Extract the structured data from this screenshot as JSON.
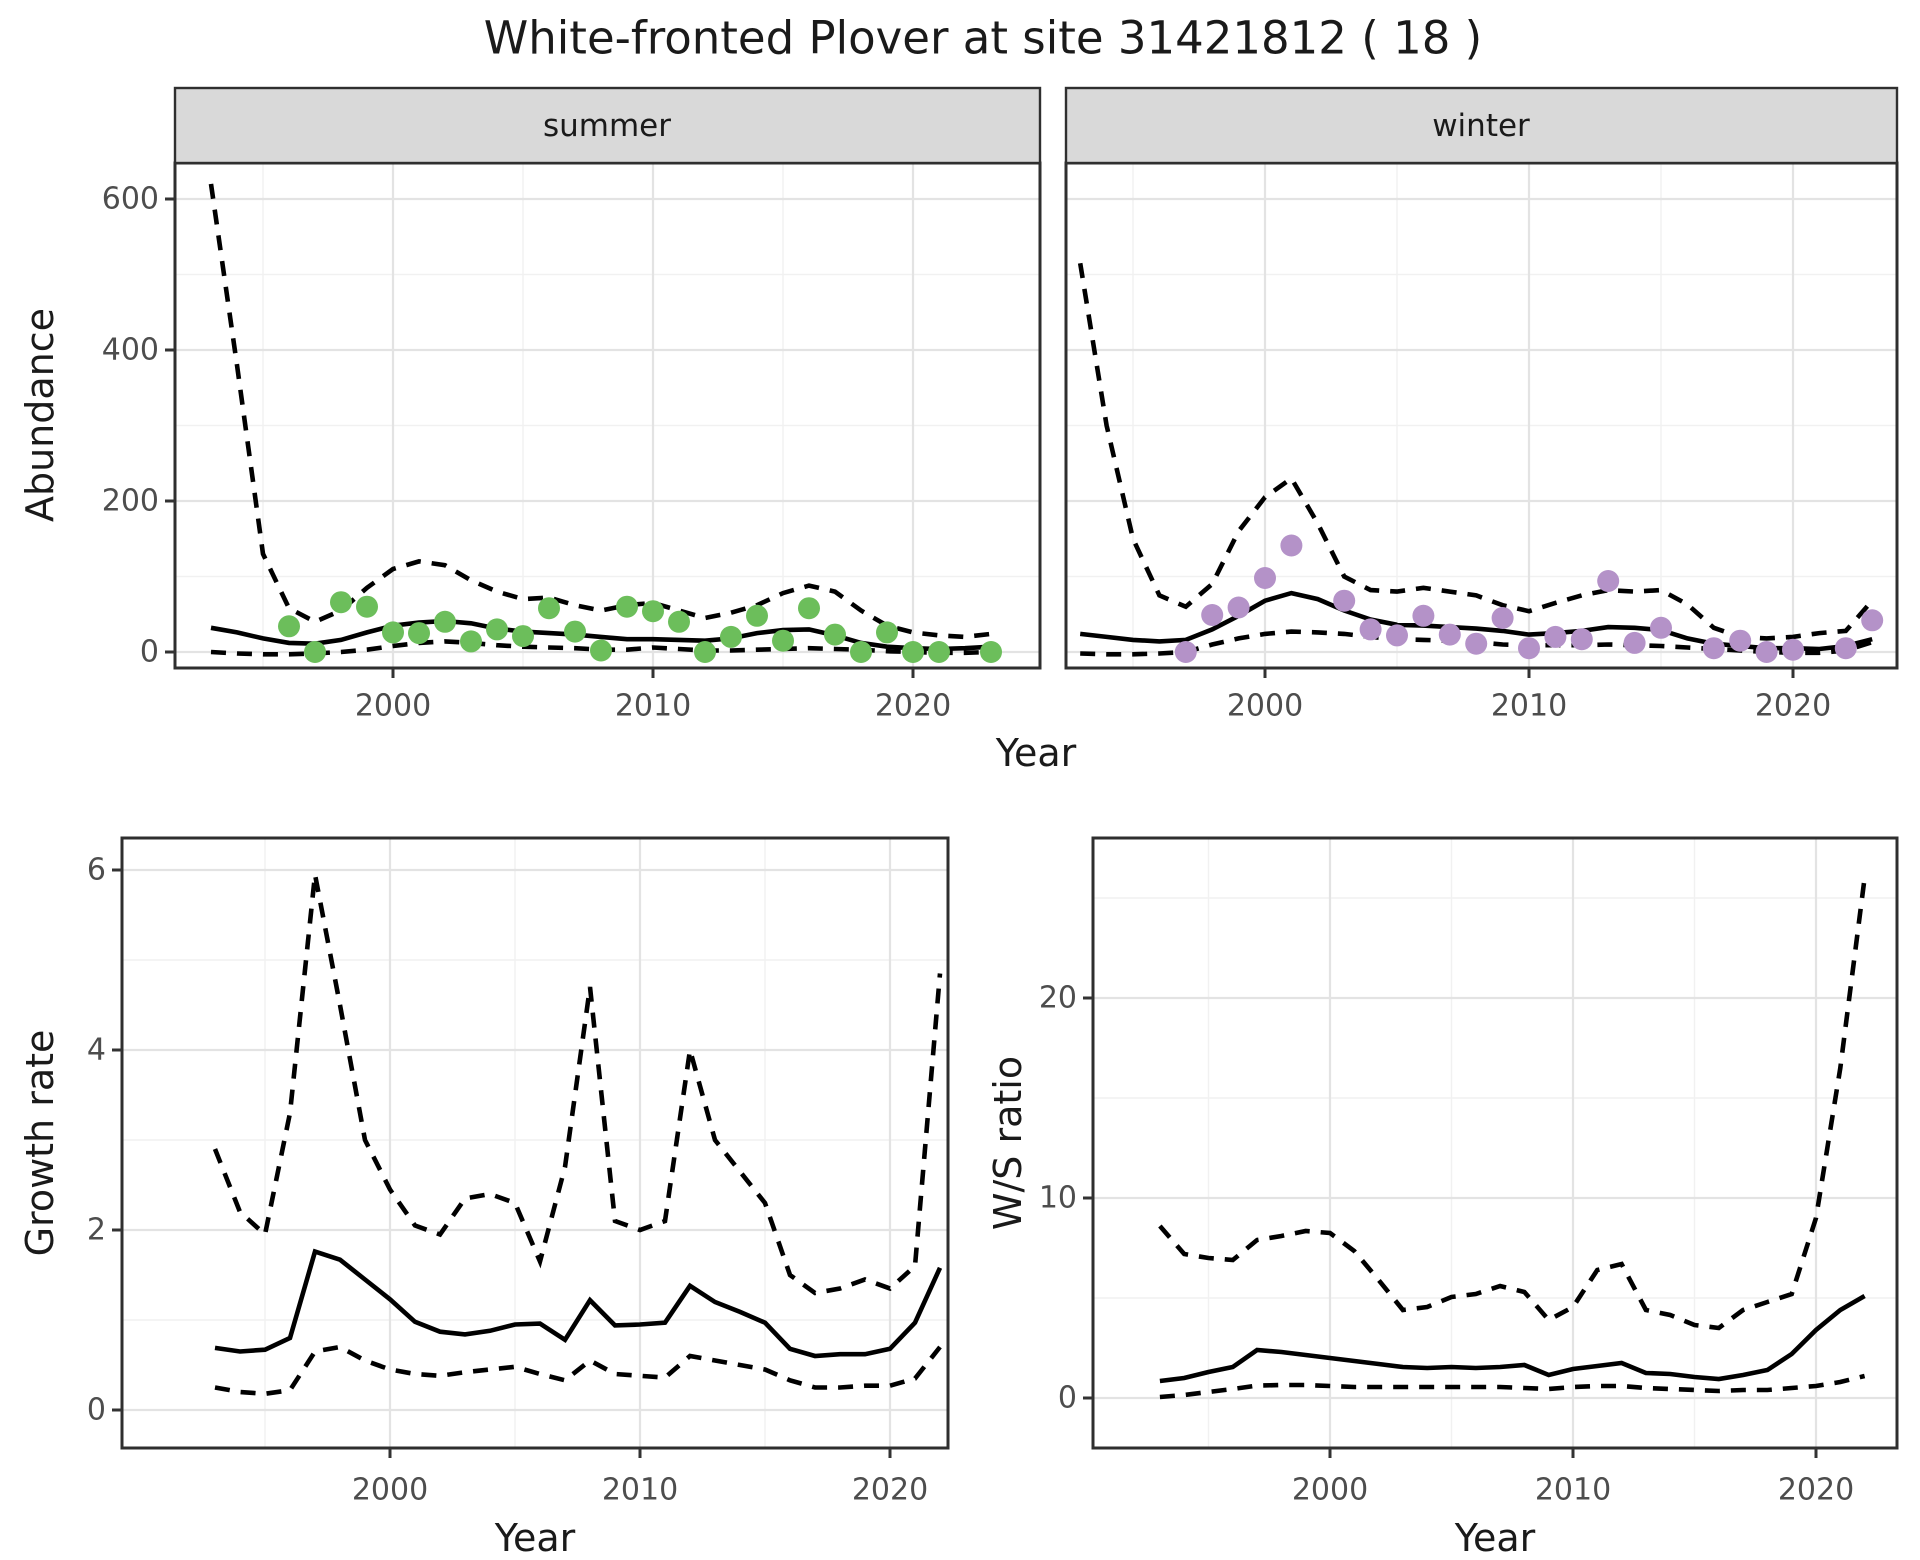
{
  "title": "White-fronted Plover at site 31421812 ( 18 )",
  "labels": {
    "y_axis_abundance": "Abundance",
    "x_axis_top": "Year",
    "y_axis_growth": "Growth rate",
    "x_axis_growth": "Year",
    "y_axis_ratio": "W/S ratio",
    "x_axis_ratio": "Year"
  },
  "colors": {
    "summer_point": "#6CBE5B",
    "winter_point": "#B492C8",
    "line": "#000000",
    "grid_major": "#E3E3E3",
    "grid_minor": "#F1F1F1",
    "panel_border": "#2F2F2F",
    "strip_fill": "#D9D9D9",
    "tick_label": "#4D4D4D",
    "background": "#FFFFFF"
  },
  "chart_data": [
    {
      "type": "line",
      "facet": "summer",
      "title": "Abundance - summer facet",
      "xlabel": "Year",
      "ylabel": "Abundance",
      "xlim": [
        1991.6,
        2024.9
      ],
      "ylim": [
        -21,
        648
      ],
      "x_ticks": [
        2000,
        2010,
        2020
      ],
      "x_minor": [
        1995,
        2005,
        2015
      ],
      "y_ticks": [
        0,
        200,
        400,
        600
      ],
      "y_minor": [
        100,
        300,
        500
      ],
      "grid": true,
      "legend": "none",
      "line_years": [
        1993,
        1994,
        1995,
        1996,
        1997,
        1998,
        1999,
        2000,
        2001,
        2002,
        2003,
        2004,
        2005,
        2006,
        2007,
        2008,
        2009,
        2010,
        2011,
        2012,
        2013,
        2014,
        2015,
        2016,
        2017,
        2018,
        2019,
        2020,
        2021,
        2022,
        2023
      ],
      "series": [
        {
          "name": "mean",
          "style": "solid",
          "values": [
            32,
            26,
            18,
            12,
            11,
            16,
            26,
            35,
            39,
            41,
            38,
            31,
            27,
            25,
            23,
            20,
            17,
            17,
            16,
            15,
            18,
            25,
            29,
            30,
            22,
            12,
            7,
            5,
            4,
            5,
            7
          ]
        },
        {
          "name": "upper_ci",
          "style": "dashed",
          "values": [
            620,
            380,
            130,
            58,
            40,
            55,
            85,
            110,
            120,
            115,
            95,
            80,
            70,
            72,
            62,
            55,
            62,
            65,
            55,
            45,
            52,
            62,
            78,
            88,
            80,
            55,
            35,
            26,
            22,
            20,
            24
          ]
        },
        {
          "name": "lower_ci",
          "style": "dashed",
          "values": [
            0,
            -2,
            -3,
            -3,
            -2,
            0,
            3,
            8,
            12,
            14,
            12,
            9,
            7,
            6,
            5,
            3,
            3,
            6,
            4,
            2,
            2,
            3,
            4,
            5,
            4,
            3,
            1,
            0,
            -1,
            -1,
            0
          ]
        }
      ],
      "points": {
        "name": "observed_counts",
        "color": "#6CBE5B",
        "years": [
          1996,
          1997,
          1998,
          1999,
          2000,
          2001,
          2002,
          2003,
          2004,
          2005,
          2006,
          2007,
          2008,
          2009,
          2010,
          2011,
          2012,
          2013,
          2014,
          2015,
          2016,
          2017,
          2018,
          2019,
          2020,
          2021,
          2023
        ],
        "values": [
          34,
          0,
          66,
          60,
          26,
          25,
          40,
          14,
          30,
          21,
          58,
          27,
          2,
          60,
          54,
          40,
          0,
          20,
          48,
          15,
          58,
          23,
          0,
          26,
          0,
          0,
          0
        ]
      }
    },
    {
      "type": "line",
      "facet": "winter",
      "title": "Abundance - winter facet",
      "xlabel": "Year",
      "ylabel": "Abundance",
      "xlim": [
        1992.5,
        2023.9
      ],
      "ylim": [
        -21,
        648
      ],
      "x_ticks": [
        2000,
        2010,
        2020
      ],
      "x_minor": [
        1995,
        2005,
        2015
      ],
      "y_ticks": [
        0,
        200,
        400,
        600
      ],
      "y_minor": [
        100,
        300,
        500
      ],
      "grid": true,
      "legend": "none",
      "line_years": [
        1993,
        1994,
        1995,
        1996,
        1997,
        1998,
        1999,
        2000,
        2001,
        2002,
        2003,
        2004,
        2005,
        2006,
        2007,
        2008,
        2009,
        2010,
        2011,
        2012,
        2013,
        2014,
        2015,
        2016,
        2017,
        2018,
        2019,
        2020,
        2021,
        2022,
        2023
      ],
      "series": [
        {
          "name": "mean",
          "style": "solid",
          "values": [
            24,
            20,
            16,
            14,
            16,
            30,
            48,
            68,
            78,
            70,
            55,
            43,
            36,
            35,
            33,
            31,
            28,
            23,
            25,
            28,
            33,
            32,
            29,
            18,
            11,
            8,
            5,
            5,
            4,
            8,
            17
          ]
        },
        {
          "name": "upper_ci",
          "style": "dashed",
          "values": [
            515,
            300,
            150,
            75,
            60,
            90,
            160,
            205,
            230,
            170,
            100,
            82,
            80,
            85,
            80,
            75,
            62,
            54,
            65,
            75,
            82,
            80,
            82,
            63,
            32,
            20,
            18,
            20,
            25,
            28,
            68
          ]
        },
        {
          "name": "lower_ci",
          "style": "dashed",
          "values": [
            -2,
            -3,
            -3,
            -2,
            0,
            10,
            18,
            24,
            27,
            26,
            24,
            20,
            17,
            16,
            15,
            13,
            10,
            9,
            9,
            9,
            10,
            9,
            8,
            6,
            4,
            2,
            0,
            -1,
            -1,
            2,
            13
          ]
        }
      ],
      "points": {
        "name": "observed_counts",
        "color": "#B492C8",
        "years": [
          1997,
          1998,
          1999,
          2000,
          2001,
          2003,
          2004,
          2005,
          2006,
          2007,
          2008,
          2009,
          2010,
          2011,
          2012,
          2013,
          2014,
          2015,
          2017,
          2018,
          2019,
          2020,
          2022,
          2023
        ],
        "values": [
          0,
          49,
          59,
          98,
          141,
          68,
          30,
          22,
          48,
          23,
          11,
          45,
          5,
          20,
          17,
          94,
          12,
          32,
          5,
          15,
          0,
          3,
          5,
          42
        ]
      }
    },
    {
      "type": "line",
      "facet": null,
      "title": "Growth rate",
      "xlabel": "Year",
      "ylabel": "Growth rate",
      "xlim": [
        1989.3,
        2022.3
      ],
      "ylim": [
        -0.42,
        6.35
      ],
      "x_ticks": [
        2000,
        2010,
        2020
      ],
      "x_minor": [
        1995,
        2005,
        2015
      ],
      "y_ticks": [
        0,
        2,
        4,
        6
      ],
      "y_minor": [
        1,
        3,
        5
      ],
      "grid": true,
      "legend": "none",
      "line_years": [
        1993,
        1994,
        1995,
        1996,
        1997,
        1998,
        1999,
        2000,
        2001,
        2002,
        2003,
        2004,
        2005,
        2006,
        2007,
        2008,
        2009,
        2010,
        2011,
        2012,
        2013,
        2014,
        2015,
        2016,
        2017,
        2018,
        2019,
        2020,
        2021,
        2022
      ],
      "series": [
        {
          "name": "mean",
          "style": "solid",
          "values": [
            0.69,
            0.65,
            0.67,
            0.8,
            1.76,
            1.67,
            1.45,
            1.23,
            0.98,
            0.87,
            0.84,
            0.88,
            0.95,
            0.96,
            0.78,
            1.22,
            0.94,
            0.95,
            0.97,
            1.38,
            1.2,
            1.09,
            0.97,
            0.68,
            0.6,
            0.62,
            0.62,
            0.68,
            0.97,
            1.58
          ]
        },
        {
          "name": "upper_ci",
          "style": "dashed",
          "values": [
            2.9,
            2.2,
            1.95,
            3.3,
            5.95,
            4.5,
            3.0,
            2.45,
            2.05,
            1.95,
            2.35,
            2.4,
            2.3,
            1.65,
            2.7,
            4.7,
            2.1,
            2.0,
            2.1,
            4.0,
            3.0,
            2.65,
            2.3,
            1.5,
            1.3,
            1.35,
            1.45,
            1.35,
            1.6,
            4.85
          ]
        },
        {
          "name": "lower_ci",
          "style": "dashed",
          "values": [
            0.25,
            0.2,
            0.18,
            0.22,
            0.65,
            0.7,
            0.55,
            0.45,
            0.4,
            0.38,
            0.42,
            0.45,
            0.48,
            0.4,
            0.33,
            0.55,
            0.4,
            0.38,
            0.36,
            0.6,
            0.55,
            0.5,
            0.45,
            0.33,
            0.25,
            0.25,
            0.27,
            0.27,
            0.35,
            0.7
          ]
        }
      ],
      "points": null
    },
    {
      "type": "line",
      "facet": null,
      "title": "W/S ratio",
      "xlabel": "Year",
      "ylabel": "W/S ratio",
      "xlim": [
        1990.2,
        2023.3
      ],
      "ylim": [
        -2.5,
        28
      ],
      "x_ticks": [
        2000,
        2010,
        2020
      ],
      "x_minor": [
        1995,
        2005,
        2015
      ],
      "y_ticks": [
        0,
        10,
        20
      ],
      "y_minor": [
        5,
        15,
        25
      ],
      "grid": true,
      "legend": "none",
      "line_years": [
        1993,
        1994,
        1995,
        1996,
        1997,
        1998,
        1999,
        2000,
        2001,
        2002,
        2003,
        2004,
        2005,
        2006,
        2007,
        2008,
        2009,
        2010,
        2011,
        2012,
        2013,
        2014,
        2015,
        2016,
        2017,
        2018,
        2019,
        2020,
        2021,
        2022
      ],
      "series": [
        {
          "name": "mean",
          "style": "solid",
          "values": [
            0.85,
            1.0,
            1.3,
            1.55,
            2.4,
            2.3,
            2.15,
            2.0,
            1.85,
            1.7,
            1.55,
            1.5,
            1.55,
            1.5,
            1.55,
            1.65,
            1.15,
            1.45,
            1.6,
            1.75,
            1.25,
            1.2,
            1.05,
            0.95,
            1.15,
            1.4,
            2.2,
            3.4,
            4.4,
            5.1
          ]
        },
        {
          "name": "upper_ci",
          "style": "dashed",
          "values": [
            8.6,
            7.2,
            7.0,
            6.9,
            7.9,
            8.1,
            8.35,
            8.25,
            7.35,
            5.9,
            4.4,
            4.55,
            5.05,
            5.2,
            5.6,
            5.3,
            3.9,
            4.55,
            6.4,
            6.7,
            4.4,
            4.15,
            3.65,
            3.5,
            4.4,
            4.8,
            5.2,
            9.0,
            16.5,
            26.0
          ]
        },
        {
          "name": "lower_ci",
          "style": "dashed",
          "values": [
            0.05,
            0.15,
            0.3,
            0.45,
            0.62,
            0.65,
            0.65,
            0.6,
            0.55,
            0.55,
            0.55,
            0.55,
            0.55,
            0.55,
            0.55,
            0.5,
            0.45,
            0.55,
            0.6,
            0.6,
            0.5,
            0.45,
            0.4,
            0.35,
            0.4,
            0.4,
            0.5,
            0.6,
            0.8,
            1.1
          ]
        }
      ],
      "points": null
    }
  ]
}
